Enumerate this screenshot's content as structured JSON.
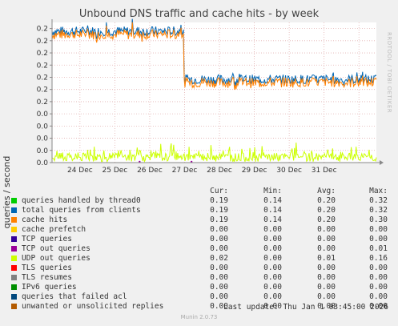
{
  "title": "Unbound DNS traffic and cache hits - by week",
  "watermark": "RRDTOOL / TOBI OETIKER",
  "footer": "Munin 2.0.73",
  "last_update": "Last update: Thu Jan  1 03:45:00 2026",
  "legend_headers": [
    "Cur:",
    "Min:",
    "Avg:",
    "Max:"
  ],
  "legend": [
    {
      "name": "queries handled by thread0",
      "color": "#00cc00",
      "cur": "0.19",
      "min": "0.14",
      "avg": "0.20",
      "max": "0.32"
    },
    {
      "name": "total queries from clients",
      "color": "#0066b3",
      "cur": "0.19",
      "min": "0.14",
      "avg": "0.20",
      "max": "0.32"
    },
    {
      "name": "cache hits",
      "color": "#ff8000",
      "cur": "0.19",
      "min": "0.14",
      "avg": "0.20",
      "max": "0.30"
    },
    {
      "name": "cache prefetch",
      "color": "#ffcc00",
      "cur": "0.00",
      "min": "0.00",
      "avg": "0.00",
      "max": "0.00"
    },
    {
      "name": "TCP queries",
      "color": "#330099",
      "cur": "0.00",
      "min": "0.00",
      "avg": "0.00",
      "max": "0.00"
    },
    {
      "name": "TCP out queries",
      "color": "#990099",
      "cur": "0.00",
      "min": "0.00",
      "avg": "0.00",
      "max": "0.01"
    },
    {
      "name": "UDP out queries",
      "color": "#ccff00",
      "cur": "0.02",
      "min": "0.00",
      "avg": "0.01",
      "max": "0.16"
    },
    {
      "name": "TLS queries",
      "color": "#ff0000",
      "cur": "0.00",
      "min": "0.00",
      "avg": "0.00",
      "max": "0.00"
    },
    {
      "name": "TLS resumes",
      "color": "#808080",
      "cur": "0.00",
      "min": "0.00",
      "avg": "0.00",
      "max": "0.00"
    },
    {
      "name": "IPv6 queries",
      "color": "#008f00",
      "cur": "0.00",
      "min": "0.00",
      "avg": "0.00",
      "max": "0.00"
    },
    {
      "name": "queries that failed acl",
      "color": "#00487d",
      "cur": "0.00",
      "min": "0.00",
      "avg": "0.00",
      "max": "0.00"
    },
    {
      "name": "unwanted or unsolicited replies",
      "color": "#b35a00",
      "cur": "0.00",
      "min": "0.00",
      "avg": "0.00",
      "max": "0.00"
    }
  ],
  "chart_data": {
    "type": "line",
    "title": "Unbound DNS traffic and cache hits - by week",
    "ylabel": "queries / second",
    "x_ticks": [
      "24 Dec",
      "25 Dec",
      "26 Dec",
      "27 Dec",
      "28 Dec",
      "29 Dec",
      "30 Dec",
      "31 Dec"
    ],
    "y_ticks": [
      "0.0",
      "0.0",
      "0.0",
      "0.0",
      "0.0",
      "0.2",
      "0.2",
      "0.2",
      "0.2",
      "0.2",
      "0.2",
      "0.2"
    ],
    "ylim": [
      0,
      0.32
    ],
    "grid": true,
    "series": [
      {
        "name": "total queries from clients",
        "color": "#0066b3",
        "x": [
          "23 Dec",
          "24 Dec",
          "25 Dec",
          "26 Dec",
          "27 Dec",
          "27 Dec",
          "28 Dec",
          "29 Dec",
          "30 Dec",
          "31 Dec",
          "1 Jan"
        ],
        "values": [
          0.3,
          0.29,
          0.29,
          0.29,
          0.29,
          0.19,
          0.2,
          0.19,
          0.19,
          0.19,
          0.19
        ]
      },
      {
        "name": "cache hits",
        "color": "#ff8000",
        "x": [
          "23 Dec",
          "24 Dec",
          "25 Dec",
          "26 Dec",
          "27 Dec",
          "27 Dec",
          "28 Dec",
          "29 Dec",
          "30 Dec",
          "31 Dec",
          "1 Jan"
        ],
        "values": [
          0.29,
          0.28,
          0.28,
          0.28,
          0.28,
          0.18,
          0.19,
          0.18,
          0.18,
          0.18,
          0.19
        ]
      },
      {
        "name": "UDP out queries",
        "color": "#ccff00",
        "x": [
          "23 Dec",
          "24 Dec",
          "25 Dec",
          "26 Dec",
          "27 Dec",
          "28 Dec",
          "29 Dec",
          "30 Dec",
          "31 Dec",
          "1 Jan"
        ],
        "values": [
          0.02,
          0.02,
          0.02,
          0.02,
          0.01,
          0.01,
          0.01,
          0.01,
          0.01,
          0.02
        ]
      }
    ]
  }
}
